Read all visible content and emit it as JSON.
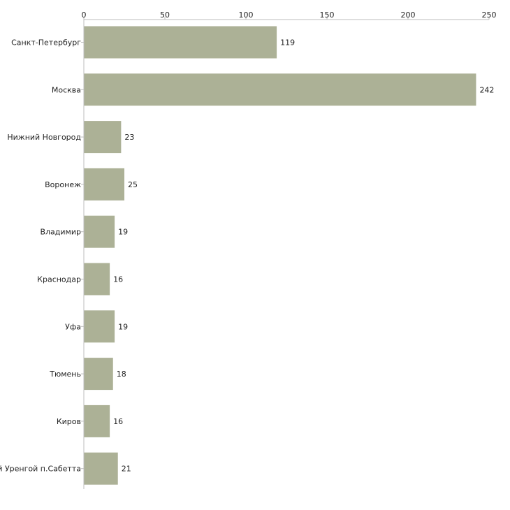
{
  "chart_data": {
    "type": "bar",
    "orientation": "horizontal",
    "title": "",
    "xlabel": "",
    "ylabel": "",
    "xlim": [
      0,
      250
    ],
    "xticks": [
      0,
      50,
      100,
      150,
      200,
      250
    ],
    "xtick_labels": [
      "0",
      "50",
      "100",
      "150",
      "200",
      "250"
    ],
    "grid": false,
    "bar_color": "#acb196",
    "categories": [
      "Санкт-Петербург",
      "Москва",
      "Нижний Новгород",
      "Воронеж",
      "Владимир",
      "Краснодар",
      "Уфа",
      "Тюмень",
      "Киров",
      "Новый Уренгой п.Сабетта"
    ],
    "values": [
      119,
      242,
      23,
      25,
      19,
      16,
      19,
      18,
      16,
      21
    ],
    "value_labels": [
      "119",
      "242",
      "23",
      "25",
      "19",
      "16",
      "19",
      "18",
      "16",
      "21"
    ]
  }
}
